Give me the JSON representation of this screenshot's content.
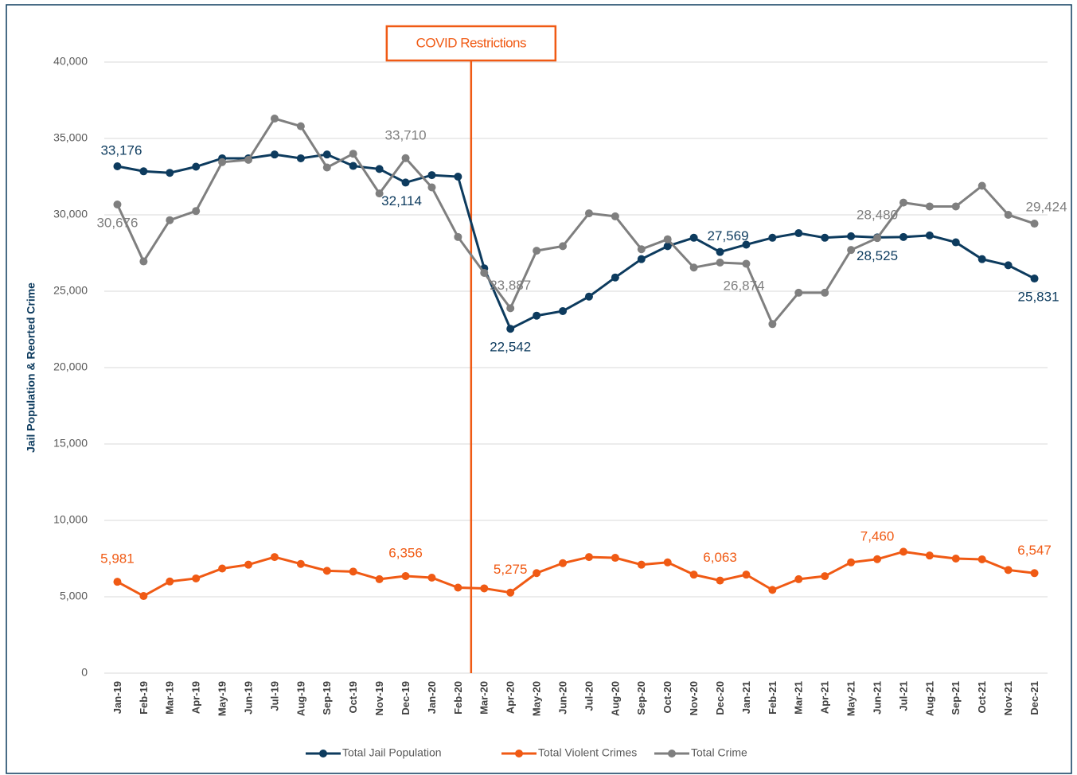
{
  "chart_data": {
    "type": "line",
    "y_label": "Jail Population & Reorted Crime",
    "annotation": "COVID Restrictions",
    "categories": [
      "Jan-19",
      "Feb-19",
      "Mar-19",
      "Apr-19",
      "May-19",
      "Jun-19",
      "Jul-19",
      "Aug-19",
      "Sep-19",
      "Oct-19",
      "Nov-19",
      "Dec-19",
      "Jan-20",
      "Feb-20",
      "Mar-20",
      "Apr-20",
      "May-20",
      "Jun-20",
      "Jul-20",
      "Aug-20",
      "Sep-20",
      "Oct-20",
      "Nov-20",
      "Dec-20",
      "Jan-21",
      "Feb-21",
      "Mar-21",
      "Apr-21",
      "May-21",
      "Jun-21",
      "Jul-21",
      "Aug-21",
      "Sep-21",
      "Oct-21",
      "Nov-21",
      "Dec-21"
    ],
    "ylim": [
      0,
      40000
    ],
    "yticks": [
      0,
      {
        "value": 5000,
        "label": "5,000"
      },
      {
        "value": 10000,
        "label": "10,000"
      },
      {
        "value": 15000,
        "label": "15,000"
      },
      {
        "value": 20000,
        "label": "20,000"
      },
      {
        "value": 25000,
        "label": "25,000"
      },
      {
        "value": 30000,
        "label": "30,000"
      },
      {
        "value": 35000,
        "label": "35,000"
      },
      {
        "value": 40000,
        "label": "40,000"
      }
    ],
    "grid": true,
    "legend": "bottom",
    "series": [
      {
        "name": "Total Jail Population",
        "color": "#0d3b5e",
        "values": [
          33176,
          32850,
          32750,
          33150,
          33700,
          33700,
          33950,
          33700,
          33950,
          33200,
          33000,
          32114,
          32600,
          32500,
          26500,
          22542,
          23400,
          23700,
          24650,
          25900,
          27100,
          27950,
          28500,
          27569,
          28050,
          28500,
          28800,
          28500,
          28600,
          28525,
          28550,
          28650,
          28200,
          27100,
          26700,
          25831
        ],
        "value_labels": [
          "33,176",
          null,
          null,
          null,
          null,
          null,
          null,
          null,
          null,
          null,
          null,
          "32,114",
          null,
          null,
          null,
          "22,542",
          null,
          null,
          null,
          null,
          null,
          null,
          null,
          "27,569",
          null,
          null,
          null,
          null,
          null,
          "28,525",
          null,
          null,
          null,
          null,
          null,
          "25,831"
        ]
      },
      {
        "name": "Total Violent Crimes",
        "color": "#f05a14",
        "values": [
          5981,
          5050,
          6000,
          6200,
          6850,
          7100,
          7600,
          7150,
          6700,
          6650,
          6150,
          6356,
          6250,
          5600,
          5550,
          5275,
          6550,
          7200,
          7600,
          7550,
          7100,
          7250,
          6450,
          6063,
          6450,
          5450,
          6150,
          6350,
          7250,
          7460,
          7950,
          7700,
          7500,
          7450,
          6750,
          6547
        ],
        "value_labels": [
          "5,981",
          null,
          null,
          null,
          null,
          null,
          null,
          null,
          null,
          null,
          null,
          "6,356",
          null,
          null,
          null,
          "5,275",
          null,
          null,
          null,
          null,
          null,
          null,
          null,
          "6,063",
          null,
          null,
          null,
          null,
          null,
          "7,460",
          null,
          null,
          null,
          null,
          null,
          "6,547"
        ]
      },
      {
        "name": "Total Crime",
        "color": "#7f7f7f",
        "values": [
          30676,
          26950,
          29650,
          30250,
          33450,
          33600,
          36300,
          35800,
          33100,
          34000,
          31400,
          33710,
          31800,
          28550,
          26200,
          23887,
          27650,
          27950,
          30100,
          29900,
          27750,
          28400,
          26550,
          26874,
          26800,
          22850,
          24900,
          24900,
          27700,
          28480,
          30800,
          30550,
          30550,
          31900,
          30000,
          29424
        ],
        "value_labels": [
          "30,676",
          null,
          null,
          null,
          null,
          null,
          null,
          null,
          null,
          null,
          null,
          "33,710",
          null,
          null,
          null,
          "23,887",
          null,
          null,
          null,
          null,
          null,
          null,
          null,
          "26,874",
          null,
          null,
          null,
          null,
          null,
          "28,480",
          null,
          null,
          null,
          null,
          null,
          "29,424"
        ]
      }
    ]
  }
}
